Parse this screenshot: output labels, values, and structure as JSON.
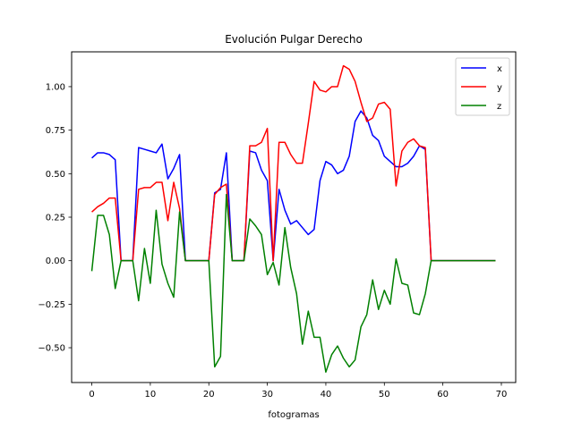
{
  "chart_data": {
    "type": "line",
    "title": "Evolución Pulgar Derecho",
    "xlabel": "fotogramas",
    "ylabel": "",
    "xlim": [
      -3.45,
      72.45
    ],
    "ylim": [
      -0.7,
      1.2
    ],
    "xticks": [
      0,
      10,
      20,
      30,
      40,
      50,
      60,
      70
    ],
    "xtick_labels": [
      "0",
      "10",
      "20",
      "30",
      "40",
      "50",
      "60",
      "70"
    ],
    "yticks": [
      -0.5,
      -0.25,
      0.0,
      0.25,
      0.5,
      0.75,
      1.0
    ],
    "ytick_labels": [
      "−0.50",
      "−0.25",
      "0.00",
      "0.25",
      "0.50",
      "0.75",
      "1.00"
    ],
    "grid": false,
    "legend_position": "top-right",
    "x": [
      0,
      1,
      2,
      3,
      4,
      5,
      6,
      7,
      8,
      9,
      10,
      11,
      12,
      13,
      14,
      15,
      16,
      17,
      18,
      19,
      20,
      21,
      22,
      23,
      24,
      25,
      26,
      27,
      28,
      29,
      30,
      31,
      32,
      33,
      34,
      35,
      36,
      37,
      38,
      39,
      40,
      41,
      42,
      43,
      44,
      45,
      46,
      47,
      48,
      49,
      50,
      51,
      52,
      53,
      54,
      55,
      56,
      57,
      58,
      59,
      60,
      61,
      62,
      63,
      64,
      65,
      66,
      67,
      68,
      69
    ],
    "series": [
      {
        "name": "x",
        "color": "#0000ff",
        "values": [
          0.59,
          0.62,
          0.62,
          0.61,
          0.58,
          0,
          0,
          0,
          0.65,
          0.64,
          0.63,
          0.62,
          0.67,
          0.47,
          0.53,
          0.61,
          0,
          0,
          0,
          0,
          0,
          0.39,
          0.41,
          0.62,
          0,
          0,
          0,
          0.63,
          0.62,
          0.52,
          0.46,
          0,
          0.41,
          0.29,
          0.21,
          0.23,
          0.19,
          0.15,
          0.18,
          0.46,
          0.57,
          0.55,
          0.5,
          0.52,
          0.6,
          0.8,
          0.86,
          0.82,
          0.72,
          0.69,
          0.6,
          0.57,
          0.54,
          0.54,
          0.56,
          0.6,
          0.66,
          0.64,
          0,
          0,
          0,
          0,
          0,
          0,
          0,
          0,
          0,
          0,
          0,
          0
        ]
      },
      {
        "name": "y",
        "color": "#ff0000",
        "values": [
          0.28,
          0.31,
          0.33,
          0.36,
          0.36,
          0,
          0,
          0,
          0.41,
          0.42,
          0.42,
          0.45,
          0.45,
          0.23,
          0.45,
          0.3,
          0,
          0,
          0,
          0,
          0,
          0.38,
          0.42,
          0.44,
          0,
          0,
          0,
          0.66,
          0.66,
          0.68,
          0.76,
          0,
          0.68,
          0.68,
          0.61,
          0.56,
          0.56,
          0.79,
          1.03,
          0.98,
          0.97,
          1.0,
          1.0,
          1.12,
          1.1,
          1.03,
          0.91,
          0.8,
          0.82,
          0.9,
          0.91,
          0.87,
          0.43,
          0.63,
          0.68,
          0.7,
          0.66,
          0.65,
          0,
          0,
          0,
          0,
          0,
          0,
          0,
          0,
          0,
          0,
          0,
          0
        ]
      },
      {
        "name": "z",
        "color": "#008000",
        "values": [
          -0.06,
          0.26,
          0.26,
          0.15,
          -0.16,
          0,
          0,
          0,
          -0.23,
          0.07,
          -0.13,
          0.29,
          -0.02,
          -0.13,
          -0.21,
          0.28,
          0,
          0,
          0,
          0,
          0,
          -0.61,
          -0.55,
          0.38,
          0,
          0,
          0,
          0.24,
          0.2,
          0.15,
          -0.08,
          -0.01,
          -0.14,
          0.19,
          -0.04,
          -0.19,
          -0.48,
          -0.29,
          -0.44,
          -0.44,
          -0.64,
          -0.54,
          -0.49,
          -0.56,
          -0.61,
          -0.57,
          -0.38,
          -0.31,
          -0.11,
          -0.28,
          -0.17,
          -0.25,
          0.01,
          -0.13,
          -0.14,
          -0.3,
          -0.31,
          -0.19,
          0,
          0,
          0,
          0,
          0,
          0,
          0,
          0,
          0,
          0,
          0,
          0
        ]
      }
    ]
  }
}
